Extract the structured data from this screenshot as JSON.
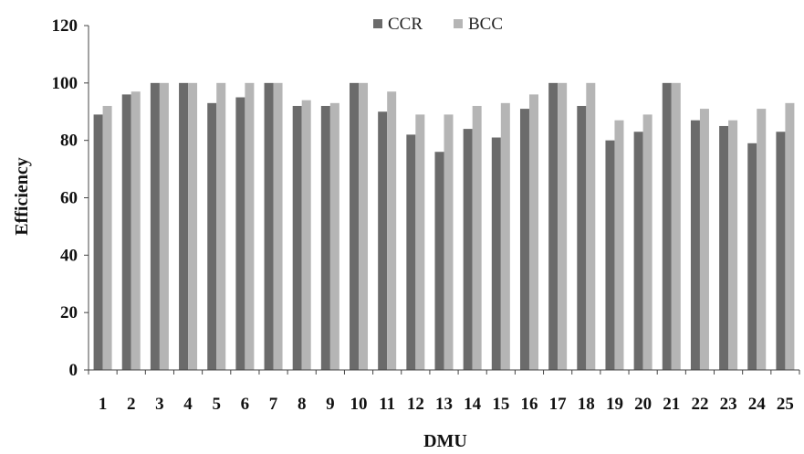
{
  "chart_data": {
    "type": "bar",
    "title": "",
    "xlabel": "DMU",
    "ylabel": "Efficiency",
    "ylim": [
      0,
      120
    ],
    "yticks": [
      0,
      20,
      40,
      60,
      80,
      100,
      120
    ],
    "grid": false,
    "legend_position": "top-center",
    "categories": [
      "1",
      "2",
      "3",
      "4",
      "5",
      "6",
      "7",
      "8",
      "9",
      "10",
      "11",
      "12",
      "13",
      "14",
      "15",
      "16",
      "17",
      "18",
      "19",
      "20",
      "21",
      "22",
      "23",
      "24",
      "25"
    ],
    "series": [
      {
        "name": "CCR",
        "color": "#6b6b6b",
        "values": [
          89,
          96,
          100,
          100,
          93,
          95,
          100,
          92,
          92,
          100,
          90,
          82,
          76,
          84,
          81,
          91,
          100,
          92,
          80,
          83,
          100,
          87,
          85,
          79,
          83
        ]
      },
      {
        "name": "BCC",
        "color": "#b5b5b5",
        "values": [
          92,
          97,
          100,
          100,
          100,
          100,
          100,
          94,
          93,
          100,
          97,
          89,
          89,
          92,
          93,
          96,
          100,
          100,
          87,
          89,
          100,
          91,
          87,
          91,
          93
        ]
      }
    ]
  }
}
